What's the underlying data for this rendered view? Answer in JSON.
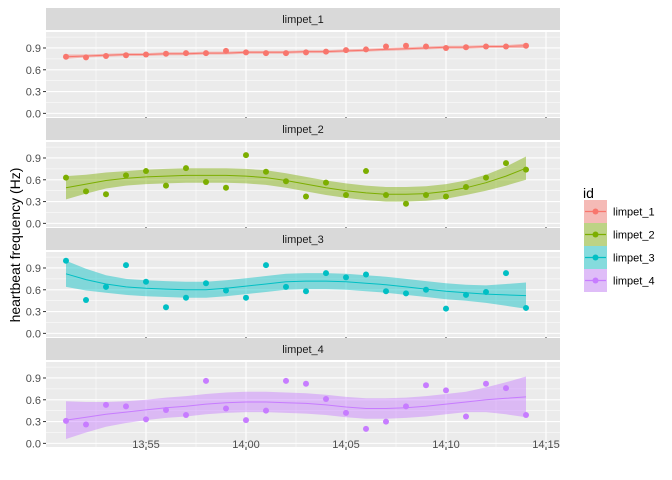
{
  "chart_data": {
    "type": "scatter",
    "facet_by": "id",
    "smoother": "loess",
    "ylabel": "heartbeat frequency (Hz)",
    "xlabel": "",
    "x_ticks": [
      "13:55",
      "14:00",
      "14:05",
      "14:10",
      "14:15"
    ],
    "x_tick_minutes": [
      5,
      10,
      15,
      20,
      25
    ],
    "xlim_minutes": [
      0.0,
      25.7
    ],
    "y_ticks": [
      "0.0",
      "0.3",
      "0.6",
      "0.9"
    ],
    "y_tick_values": [
      0,
      0.3,
      0.6,
      0.9
    ],
    "ylim": [
      -0.05,
      1.12
    ],
    "legend": {
      "title": "id",
      "position": "right"
    },
    "x_minutes": [
      1,
      2,
      3,
      4,
      5,
      6,
      7,
      8,
      9,
      10,
      11,
      12,
      13,
      14,
      15,
      16,
      17,
      18,
      19,
      20,
      21,
      22,
      23,
      24
    ],
    "panels": [
      {
        "name": "limpet_1",
        "color": "#F8766D",
        "points": [
          0.78,
          0.77,
          0.79,
          0.8,
          0.81,
          0.82,
          0.83,
          0.83,
          0.86,
          0.84,
          0.83,
          0.83,
          0.84,
          0.85,
          0.87,
          0.88,
          0.92,
          0.93,
          0.92,
          0.9,
          0.91,
          0.92,
          0.92,
          0.93
        ],
        "fit": [
          0.78,
          0.79,
          0.8,
          0.81,
          0.81,
          0.82,
          0.82,
          0.83,
          0.83,
          0.84,
          0.84,
          0.84,
          0.85,
          0.85,
          0.86,
          0.87,
          0.88,
          0.89,
          0.9,
          0.91,
          0.91,
          0.92,
          0.92,
          0.93
        ],
        "band": [
          0.03,
          0.02,
          0.02,
          0.02,
          0.02,
          0.02,
          0.02,
          0.02,
          0.02,
          0.02,
          0.02,
          0.02,
          0.02,
          0.02,
          0.02,
          0.02,
          0.02,
          0.02,
          0.02,
          0.02,
          0.02,
          0.02,
          0.02,
          0.03
        ]
      },
      {
        "name": "limpet_2",
        "color": "#7CAE00",
        "points": [
          0.63,
          0.44,
          0.4,
          0.66,
          0.72,
          0.52,
          0.76,
          0.57,
          0.49,
          0.94,
          0.71,
          0.58,
          0.37,
          0.56,
          0.39,
          0.72,
          0.39,
          0.27,
          0.39,
          0.37,
          0.5,
          0.63,
          0.83,
          0.74
        ],
        "fit": [
          0.49,
          0.54,
          0.59,
          0.62,
          0.64,
          0.65,
          0.66,
          0.66,
          0.66,
          0.65,
          0.63,
          0.59,
          0.54,
          0.49,
          0.45,
          0.42,
          0.4,
          0.4,
          0.41,
          0.44,
          0.49,
          0.56,
          0.65,
          0.76
        ],
        "band": [
          0.16,
          0.13,
          0.11,
          0.1,
          0.1,
          0.1,
          0.1,
          0.1,
          0.1,
          0.1,
          0.1,
          0.1,
          0.1,
          0.1,
          0.1,
          0.1,
          0.1,
          0.1,
          0.1,
          0.1,
          0.1,
          0.11,
          0.13,
          0.16
        ]
      },
      {
        "name": "limpet_3",
        "color": "#00BFC4",
        "points": [
          1.0,
          0.46,
          0.64,
          0.94,
          0.71,
          0.36,
          0.49,
          0.69,
          0.59,
          0.49,
          0.94,
          0.64,
          0.58,
          0.83,
          0.77,
          0.81,
          0.58,
          0.55,
          0.6,
          0.34,
          0.53,
          0.57,
          0.83,
          0.35
        ],
        "fit": [
          0.82,
          0.74,
          0.68,
          0.64,
          0.62,
          0.61,
          0.6,
          0.6,
          0.62,
          0.65,
          0.68,
          0.71,
          0.72,
          0.72,
          0.71,
          0.69,
          0.67,
          0.64,
          0.61,
          0.58,
          0.56,
          0.54,
          0.53,
          0.52
        ],
        "band": [
          0.18,
          0.15,
          0.12,
          0.11,
          0.11,
          0.11,
          0.11,
          0.11,
          0.11,
          0.11,
          0.11,
          0.11,
          0.11,
          0.11,
          0.11,
          0.11,
          0.11,
          0.11,
          0.11,
          0.11,
          0.11,
          0.12,
          0.15,
          0.18
        ]
      },
      {
        "name": "limpet_4",
        "color": "#C77CFF",
        "points": [
          0.31,
          0.26,
          0.53,
          0.51,
          0.33,
          0.46,
          0.39,
          0.86,
          0.48,
          0.32,
          0.45,
          0.86,
          0.82,
          0.61,
          0.42,
          0.2,
          0.3,
          0.51,
          0.8,
          0.73,
          0.37,
          0.82,
          0.76,
          0.39
        ],
        "fit": [
          0.32,
          0.36,
          0.4,
          0.43,
          0.46,
          0.49,
          0.51,
          0.54,
          0.56,
          0.57,
          0.57,
          0.56,
          0.55,
          0.53,
          0.5,
          0.48,
          0.48,
          0.49,
          0.51,
          0.54,
          0.57,
          0.6,
          0.62,
          0.64
        ],
        "band": [
          0.26,
          0.21,
          0.17,
          0.15,
          0.14,
          0.14,
          0.14,
          0.14,
          0.14,
          0.14,
          0.14,
          0.14,
          0.14,
          0.14,
          0.14,
          0.14,
          0.14,
          0.14,
          0.14,
          0.14,
          0.14,
          0.17,
          0.22,
          0.28
        ]
      }
    ]
  }
}
